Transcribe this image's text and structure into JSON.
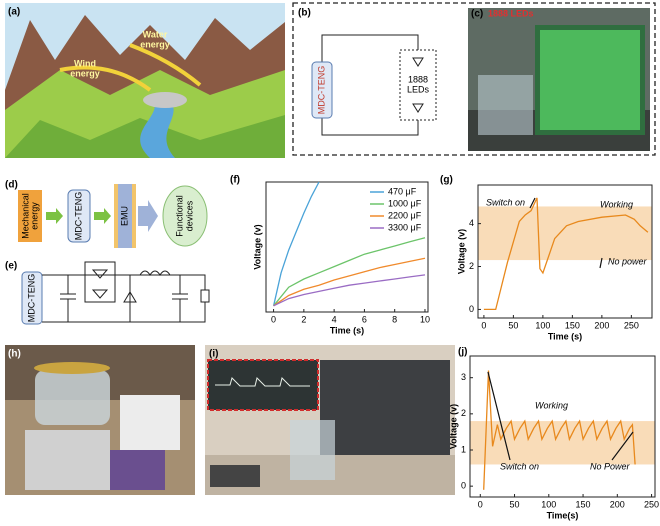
{
  "panel_labels": [
    "(a)",
    "(b)",
    "(c)",
    "(d)",
    "(e)",
    "(f)",
    "(g)",
    "(h)",
    "(i)",
    "(j)"
  ],
  "panel_a": {
    "labels": [
      [
        "Wind",
        "energy"
      ],
      [
        "Water",
        "energy"
      ]
    ]
  },
  "panel_b": {
    "device": "MDC-TENG",
    "load": [
      "1888",
      "LEDs"
    ]
  },
  "panel_c": {
    "title": "1888 LEDs"
  },
  "panel_d": {
    "steps": [
      [
        "Mechanical",
        "energy"
      ],
      "MDC-TENG",
      "EMU",
      [
        "Functional",
        "devices"
      ]
    ]
  },
  "panel_e": {
    "device": "MDC-TENG"
  },
  "chart_data": [
    {
      "type": "line",
      "xlabel": "Time (s)",
      "ylabel": "Voltage (v)",
      "xlim": [
        -0.5,
        10.2
      ],
      "ylim": [
        -0.3,
        6
      ],
      "xticks": [
        0,
        2,
        4,
        6,
        8,
        10
      ],
      "legend": "upper right",
      "series": [
        {
          "name": "470  μF",
          "color": "#4aa3d8",
          "x": [
            0,
            0.5,
            1,
            1.5,
            2,
            2.5,
            3
          ],
          "values": [
            0,
            1.6,
            2.7,
            3.6,
            4.5,
            5.3,
            6
          ]
        },
        {
          "name": "1000 μF",
          "color": "#6cc46a",
          "x": [
            0,
            1,
            2,
            3,
            4,
            5,
            6,
            7,
            8,
            9,
            10
          ],
          "values": [
            0,
            0.9,
            1.3,
            1.6,
            1.9,
            2.2,
            2.5,
            2.7,
            2.9,
            3.1,
            3.3
          ]
        },
        {
          "name": "2200 μF",
          "color": "#f08a2c",
          "x": [
            0,
            1,
            2,
            3,
            4,
            5,
            6,
            7,
            8,
            9,
            10
          ],
          "values": [
            0,
            0.5,
            0.8,
            1.0,
            1.25,
            1.45,
            1.65,
            1.85,
            2.0,
            2.15,
            2.3
          ]
        },
        {
          "name": "3300 μF",
          "color": "#9a6cc4",
          "x": [
            0,
            1,
            2,
            3,
            4,
            5,
            6,
            7,
            8,
            9,
            10
          ],
          "values": [
            0,
            0.35,
            0.55,
            0.7,
            0.85,
            1.0,
            1.1,
            1.2,
            1.3,
            1.4,
            1.5
          ]
        }
      ]
    },
    {
      "type": "line",
      "xlabel": "Time (s)",
      "ylabel": "Voltage (v)",
      "xlim": [
        -10,
        285
      ],
      "ylim": [
        -0.4,
        5.8
      ],
      "xticks": [
        0,
        50,
        100,
        150,
        200,
        250
      ],
      "yticks": [
        0,
        2,
        4
      ],
      "band": [
        2.3,
        4.8
      ],
      "band_color": "#f9dcb8",
      "annotations": [
        "Switch on",
        "Working",
        "No power"
      ],
      "series": [
        {
          "color": "#e8891d",
          "x": [
            0,
            20,
            40,
            60,
            70,
            80,
            90,
            95,
            100,
            120,
            140,
            160,
            200,
            240,
            255,
            265,
            278
          ],
          "values": [
            0,
            0,
            2.2,
            4.1,
            4.4,
            4.6,
            5.2,
            1.9,
            1.7,
            3.3,
            3.9,
            4.1,
            4.3,
            4.4,
            4.2,
            3.9,
            3.6
          ]
        }
      ]
    },
    {
      "type": "line",
      "xlabel": "Time(s)",
      "ylabel": "Voltage (v)",
      "xlim": [
        -15,
        255
      ],
      "ylim": [
        -0.3,
        3.6
      ],
      "xticks": [
        0,
        50,
        100,
        150,
        200,
        250
      ],
      "yticks": [
        0,
        1,
        2,
        3
      ],
      "band": [
        0.6,
        1.8
      ],
      "band_color": "#f9dcb8",
      "annotations": [
        "Working",
        "Switch on",
        "No Power"
      ],
      "series": [
        {
          "color": "#e8891d",
          "x": [
            5,
            12,
            18,
            25,
            30,
            38,
            45,
            50,
            58,
            65,
            70,
            78,
            85,
            90,
            98,
            105,
            110,
            118,
            125,
            130,
            138,
            145,
            150,
            158,
            165,
            170,
            178,
            185,
            190,
            198,
            205,
            210,
            218,
            222,
            226
          ],
          "values": [
            -0.1,
            3.2,
            1.1,
            1.7,
            1.3,
            1.6,
            1.8,
            1.3,
            1.6,
            1.8,
            1.3,
            1.6,
            1.8,
            1.3,
            1.6,
            1.8,
            1.3,
            1.6,
            1.8,
            1.3,
            1.6,
            1.8,
            1.3,
            1.6,
            1.8,
            1.3,
            1.6,
            1.8,
            1.3,
            1.6,
            1.8,
            1.3,
            1.6,
            1.7,
            0.6
          ]
        }
      ]
    }
  ]
}
